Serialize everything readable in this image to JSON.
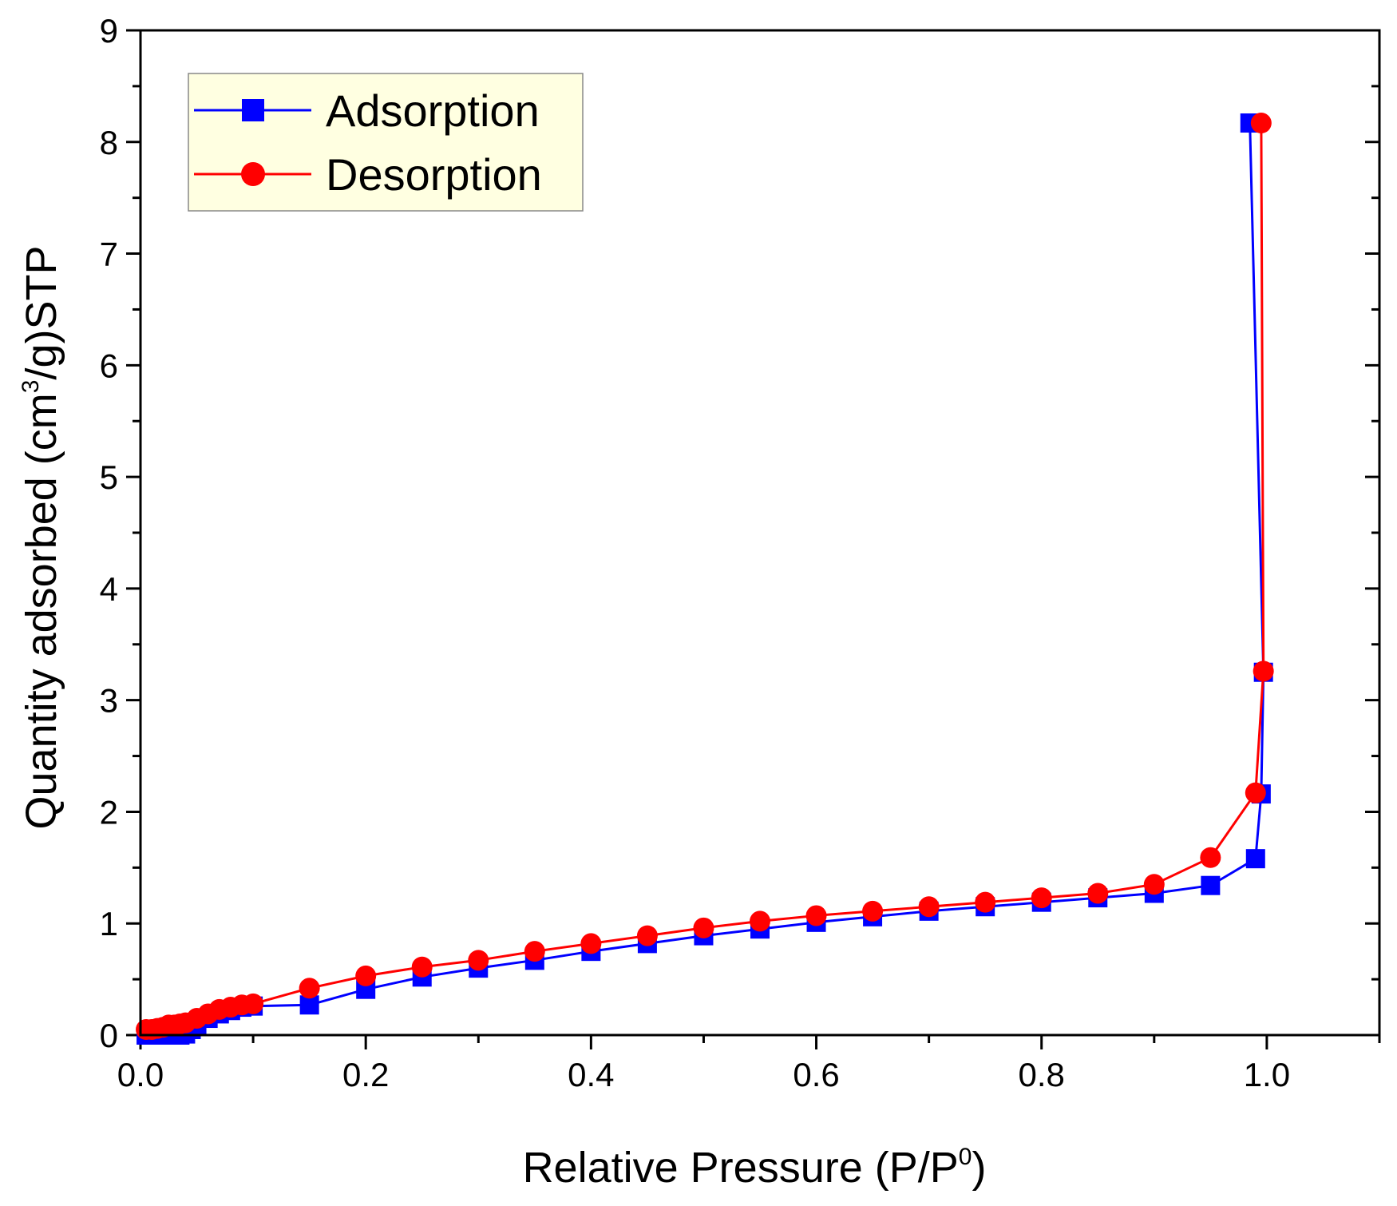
{
  "chart_data": {
    "type": "line",
    "title": "",
    "xlabel": "Relative Pressure (P/P",
    "xlabel_sup": "0",
    "xlabel_end": ")",
    "ylabel": "Quantity adsorbed (cm",
    "ylabel_sup": "3",
    "ylabel_end": "/g)STP",
    "xlim": [
      0,
      1.1
    ],
    "ylim": [
      0,
      9
    ],
    "x_ticks": [
      0.0,
      0.2,
      0.4,
      0.6,
      0.8,
      1.0
    ],
    "x_tick_labels": [
      "0.0",
      "0.2",
      "0.4",
      "0.6",
      "0.8",
      "1.0"
    ],
    "y_ticks": [
      0,
      1,
      2,
      3,
      4,
      5,
      6,
      7,
      8,
      9
    ],
    "y_tick_labels": [
      "0",
      "1",
      "2",
      "3",
      "4",
      "5",
      "6",
      "7",
      "8",
      "9"
    ],
    "grid": false,
    "legend_position": "top-left",
    "series": [
      {
        "name": "Adsorption",
        "color": "#0000ff",
        "marker": "square",
        "x": [
          0.005,
          0.01,
          0.015,
          0.02,
          0.025,
          0.03,
          0.035,
          0.04,
          0.045,
          0.05,
          0.06,
          0.07,
          0.08,
          0.09,
          0.1,
          0.15,
          0.2,
          0.25,
          0.3,
          0.35,
          0.4,
          0.45,
          0.5,
          0.55,
          0.6,
          0.65,
          0.7,
          0.75,
          0.8,
          0.85,
          0.9,
          0.95,
          0.99,
          0.995,
          0.997,
          0.985
        ],
        "y": [
          0.0,
          0.0,
          0.0,
          0.0,
          0.0,
          0.0,
          0.0,
          0.01,
          0.05,
          0.09,
          0.15,
          0.19,
          0.22,
          0.25,
          0.26,
          0.27,
          0.41,
          0.52,
          0.6,
          0.67,
          0.75,
          0.82,
          0.89,
          0.95,
          1.01,
          1.06,
          1.11,
          1.15,
          1.19,
          1.23,
          1.27,
          1.34,
          1.58,
          2.16,
          3.25,
          8.17
        ]
      },
      {
        "name": "Desorption",
        "color": "#ff0000",
        "marker": "circle",
        "x": [
          0.995,
          0.997,
          0.99,
          0.95,
          0.9,
          0.85,
          0.8,
          0.75,
          0.7,
          0.65,
          0.6,
          0.55,
          0.5,
          0.45,
          0.4,
          0.35,
          0.3,
          0.25,
          0.2,
          0.15,
          0.1,
          0.09,
          0.08,
          0.07,
          0.06,
          0.05,
          0.04,
          0.035,
          0.03,
          0.025,
          0.02,
          0.015,
          0.01,
          0.005
        ],
        "y": [
          8.17,
          3.26,
          2.17,
          1.59,
          1.35,
          1.27,
          1.23,
          1.19,
          1.15,
          1.11,
          1.07,
          1.02,
          0.96,
          0.89,
          0.82,
          0.75,
          0.67,
          0.61,
          0.53,
          0.42,
          0.28,
          0.27,
          0.25,
          0.23,
          0.19,
          0.15,
          0.11,
          0.1,
          0.09,
          0.09,
          0.07,
          0.06,
          0.05,
          0.05
        ]
      }
    ]
  }
}
